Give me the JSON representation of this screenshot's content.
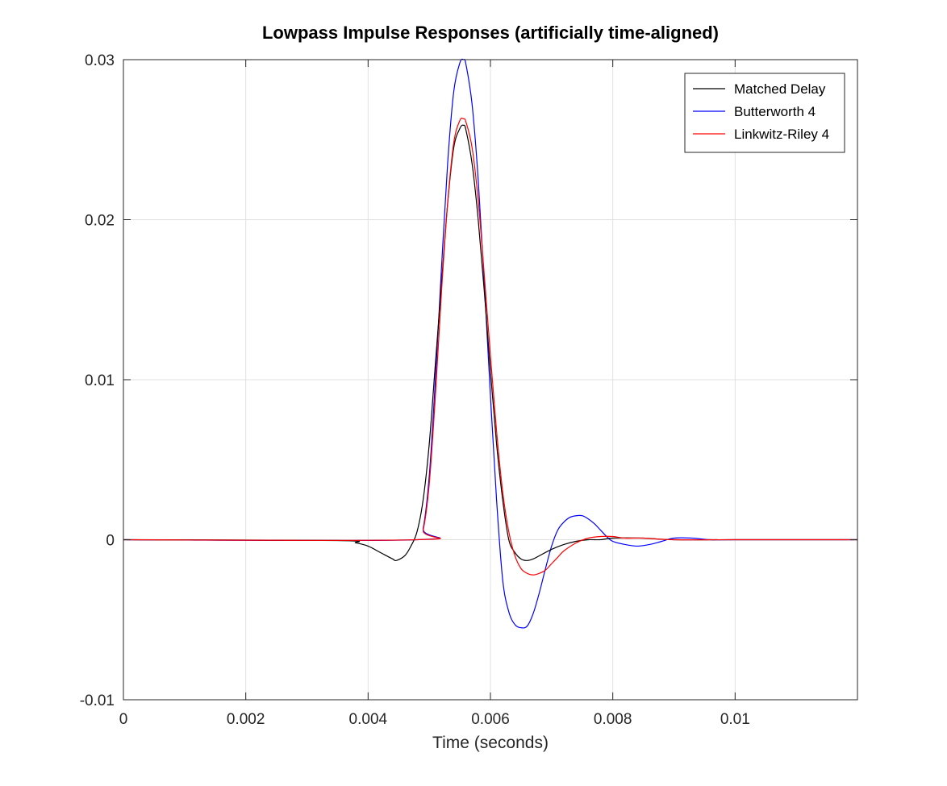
{
  "chart_data": {
    "type": "line",
    "title": "Lowpass Impulse Responses (artificially time-aligned)",
    "xlabel": "Time (seconds)",
    "ylabel": "",
    "xlim": [
      0,
      0.012
    ],
    "ylim": [
      -0.01,
      0.03
    ],
    "xticks": [
      0,
      0.002,
      0.004,
      0.006,
      0.008,
      0.01
    ],
    "xtick_labels": [
      "0",
      "0.002",
      "0.004",
      "0.006",
      "0.008",
      "0.01"
    ],
    "yticks": [
      -0.01,
      0,
      0.01,
      0.02,
      0.03
    ],
    "ytick_labels": [
      "-0.01",
      "0",
      "0.01",
      "0.02",
      "0.03"
    ],
    "grid": true,
    "legend_position": "top-right",
    "series": [
      {
        "name": "Matched Delay",
        "color": "#000000",
        "x": [
          0,
          0.0035,
          0.0038,
          0.004,
          0.0042,
          0.0044,
          0.00446,
          0.0046,
          0.0047,
          0.0048,
          0.0049,
          0.005,
          0.0051,
          0.0052,
          0.0053,
          0.0054,
          0.0055,
          0.00556,
          0.0056,
          0.0057,
          0.0058,
          0.0059,
          0.006,
          0.0061,
          0.0062,
          0.0063,
          0.0064,
          0.0065,
          0.0066,
          0.0067,
          0.0068,
          0.007,
          0.0072,
          0.0074,
          0.0076,
          0.0078,
          0.008,
          0.0085,
          0.009,
          0.01,
          0.012
        ],
        "y": [
          0,
          -5e-05,
          -0.0002,
          -0.0004,
          -0.0008,
          -0.0012,
          -0.0013,
          -0.001,
          -0.0004,
          0.0005,
          0.0025,
          0.006,
          0.011,
          0.016,
          0.021,
          0.0245,
          0.0257,
          0.0259,
          0.0256,
          0.0235,
          0.02,
          0.0155,
          0.0105,
          0.006,
          0.0025,
          0.0,
          -0.0008,
          -0.0012,
          -0.0013,
          -0.0012,
          -0.001,
          -0.0006,
          -0.0003,
          -0.0001,
          0.0,
          0.0,
          0.0001,
          0.0001,
          0.0,
          0.0,
          0.0
        ]
      },
      {
        "name": "Butterworth 4",
        "color": "#0000ff",
        "x": [
          0,
          0.0048,
          0.0049,
          0.005,
          0.0051,
          0.0052,
          0.0053,
          0.0054,
          0.0055,
          0.00556,
          0.0056,
          0.0057,
          0.0058,
          0.0059,
          0.006,
          0.0061,
          0.0062,
          0.0063,
          0.0064,
          0.0065,
          0.0066,
          0.0067,
          0.0068,
          0.0069,
          0.007,
          0.0071,
          0.0072,
          0.0073,
          0.0074,
          0.0075,
          0.0076,
          0.0077,
          0.0078,
          0.0079,
          0.008,
          0.0082,
          0.0084,
          0.0086,
          0.0088,
          0.009,
          0.0093,
          0.0096,
          0.01,
          0.012
        ],
        "y": [
          0,
          0,
          0.0007,
          0.004,
          0.01,
          0.017,
          0.0235,
          0.028,
          0.0298,
          0.03,
          0.0297,
          0.0272,
          0.0225,
          0.016,
          0.009,
          0.0025,
          -0.0025,
          -0.0045,
          -0.0053,
          -0.0055,
          -0.0054,
          -0.0046,
          -0.0033,
          -0.0018,
          -0.0004,
          0.0006,
          0.0011,
          0.0014,
          0.0015,
          0.0015,
          0.0013,
          0.001,
          0.0006,
          0.0002,
          -0.0001,
          -0.0003,
          -0.0004,
          -0.0003,
          -0.0001,
          0.0001,
          0.0001,
          0.0,
          0.0,
          0.0
        ]
      },
      {
        "name": "Linkwitz-Riley 4",
        "color": "#ff0000",
        "x": [
          0,
          0.0048,
          0.0049,
          0.005,
          0.0051,
          0.0052,
          0.0053,
          0.0054,
          0.0055,
          0.00556,
          0.0056,
          0.0057,
          0.0058,
          0.0059,
          0.006,
          0.0061,
          0.0062,
          0.0063,
          0.0064,
          0.0065,
          0.0066,
          0.0067,
          0.0068,
          0.0069,
          0.007,
          0.0071,
          0.0072,
          0.0074,
          0.0076,
          0.0078,
          0.008,
          0.0082,
          0.0085,
          0.009,
          0.01,
          0.012
        ],
        "y": [
          0,
          0,
          0.0006,
          0.0035,
          0.009,
          0.0155,
          0.021,
          0.0248,
          0.0262,
          0.0263,
          0.0261,
          0.0245,
          0.0212,
          0.0165,
          0.0115,
          0.0068,
          0.003,
          0.0005,
          -0.001,
          -0.0018,
          -0.0021,
          -0.0022,
          -0.0021,
          -0.0019,
          -0.0015,
          -0.0011,
          -0.0007,
          -0.0002,
          0.0001,
          0.0002,
          0.0002,
          0.0001,
          0.0001,
          0.0,
          0.0,
          0.0
        ]
      }
    ]
  }
}
